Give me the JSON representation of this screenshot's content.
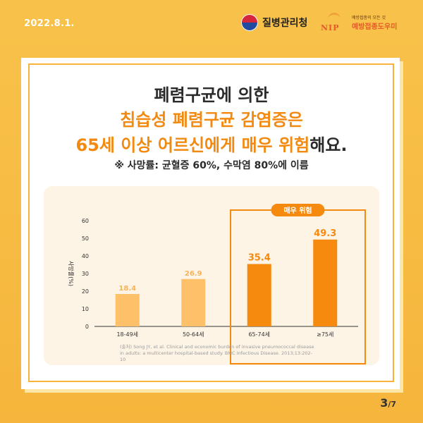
{
  "header": {
    "date": "2022.8.1.",
    "agency_name": "질병관리청",
    "nip_letters": "NIP",
    "nip_tagline": "예방접종의 모든 것",
    "nip_name": "예방접종도우미"
  },
  "headline": {
    "line1": "폐렴구균에 의한",
    "line2": "침습성 폐렴구균 감염증은",
    "line3_orange": "65세 이상 어르신에게 매우 위험",
    "line3_dark": "해요.",
    "subline": "※ 사망률: 균혈증 60%, 수막염 80%에 이름"
  },
  "chart_data": {
    "type": "bar",
    "categories": [
      "18-49세",
      "50-64세",
      "65-74세",
      "≥75세"
    ],
    "values": [
      18.4,
      26.9,
      35.4,
      49.3
    ],
    "value_labels": [
      "18.4",
      "26.9",
      "35.4",
      "49.3"
    ],
    "ylabel": "사망률(%)",
    "ylim": [
      0,
      60
    ],
    "yticks": [
      "0",
      "10",
      "20",
      "30",
      "40",
      "50",
      "60"
    ],
    "highlight_label": "매우 위험",
    "highlight_from_index": 2,
    "colors": {
      "normal": "#ffc06a",
      "normal_label": "#f7b35a",
      "highlight": "#f58a0f",
      "highlight_label": "#f58a0f",
      "axis_text": "#333333"
    },
    "grid": false
  },
  "source": {
    "line1": "(출처) Song JY, et al. Clinical and economic burden of invasive pneumococcal disease",
    "line2": "in adults: a multicenter hospital-based study. BMC Infectious Disease. 2013;13:202-10"
  },
  "pagination": {
    "current": "3",
    "total": "/7"
  }
}
